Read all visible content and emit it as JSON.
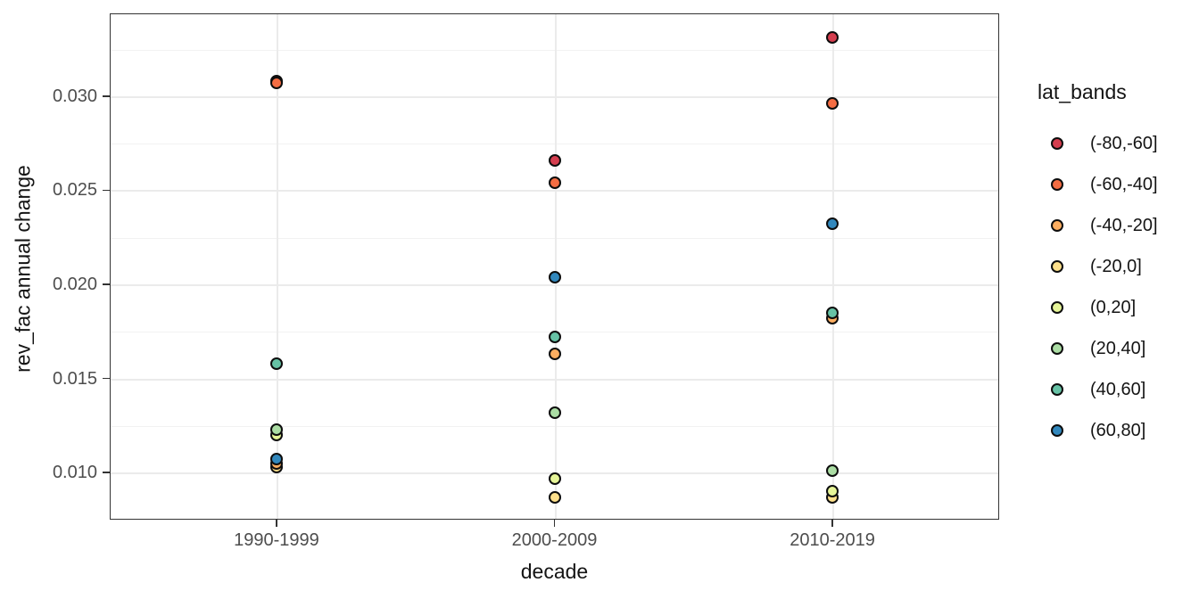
{
  "chart_data": {
    "type": "scatter",
    "title": "",
    "xlabel": "decade",
    "ylabel": "rev_fac annual change",
    "categories": [
      "1990-1999",
      "2000-2009",
      "2010-2019"
    ],
    "y_tick_labels": [
      "0.030",
      "0.025",
      "0.020",
      "0.015",
      "0.010"
    ],
    "y_ticks": [
      0.03,
      0.025,
      0.02,
      0.015,
      0.01
    ],
    "y_minor_gridlines": [
      0.0325,
      0.0275,
      0.0225,
      0.0175,
      0.0125
    ],
    "ylim": [
      0.0075,
      0.0344
    ],
    "grid": "major-and-minor-horizontal, major-vertical-per-category",
    "legend_position": "right",
    "legend_title": "lat_bands",
    "point_outline_color": "#0d0d0d",
    "panel_border_color": "#333333",
    "series": [
      {
        "name": "(-80,-60]",
        "color": "#d53e4f",
        "values": [
          0.0308,
          0.0266,
          0.0331
        ]
      },
      {
        "name": "(-60,-40]",
        "color": "#f46d43",
        "values": [
          0.0307,
          0.0254,
          0.0296
        ]
      },
      {
        "name": "(-40,-20]",
        "color": "#fdae61",
        "values": [
          0.0105,
          0.0163,
          0.0182
        ]
      },
      {
        "name": "(-20,0]",
        "color": "#fee08b",
        "values": [
          0.0103,
          0.0087,
          0.0087
        ]
      },
      {
        "name": "(0,20]",
        "color": "#e6f598",
        "values": [
          0.012,
          0.0097,
          0.009
        ]
      },
      {
        "name": "(20,40]",
        "color": "#abdda4",
        "values": [
          0.0123,
          0.0132,
          0.0101
        ]
      },
      {
        "name": "(40,60]",
        "color": "#66c2a5",
        "values": [
          0.0158,
          0.0172,
          0.0185
        ]
      },
      {
        "name": "(60,80]",
        "color": "#3288bd",
        "values": [
          0.0107,
          0.0204,
          0.0232
        ]
      }
    ]
  }
}
